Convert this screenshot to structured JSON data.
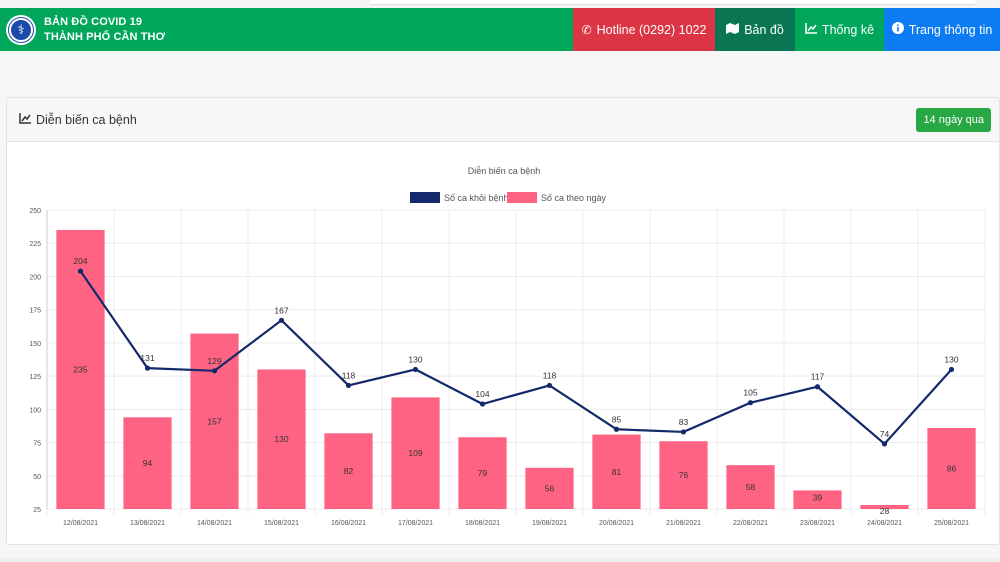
{
  "navbar": {
    "brand_line1": "BẢN ĐỒ COVID 19",
    "brand_line2": "THÀNH PHỐ CẦN THƠ",
    "logo_icon": "medical-caduceus-icon",
    "items": [
      {
        "label": "Hotline (0292) 1022",
        "icon": "phone-icon",
        "color": "#dc3545"
      },
      {
        "label": "Bản đồ",
        "icon": "map-icon",
        "color": "#097553"
      },
      {
        "label": "Thống kê",
        "icon": "line-chart-icon",
        "color": "#00a65a"
      },
      {
        "label": "Trang thông tin",
        "icon": "info-circle-icon",
        "color": "#0d7cf2"
      }
    ]
  },
  "card": {
    "title": "Diễn biến ca bệnh",
    "title_icon": "line-chart-icon",
    "range_button": "14 ngày qua"
  },
  "chart_data": {
    "type": "bar",
    "title": "Diễn biến ca bệnh",
    "xlabel": "",
    "ylabel": "",
    "ylim": [
      25,
      250
    ],
    "yticks": [
      25,
      50,
      75,
      100,
      125,
      150,
      175,
      200,
      225,
      250
    ],
    "grid": true,
    "legend": "top-center",
    "categories": [
      "12/08/2021",
      "13/08/2021",
      "14/08/2021",
      "15/08/2021",
      "16/08/2021",
      "17/08/2021",
      "18/08/2021",
      "19/08/2021",
      "20/08/2021",
      "21/08/2021",
      "22/08/2021",
      "23/08/2021",
      "24/08/2021",
      "25/08/2021"
    ],
    "series": [
      {
        "name": "Số ca khỏi bệnh",
        "type": "line",
        "color": "#14296b",
        "values": [
          204,
          131,
          129,
          167,
          118,
          130,
          104,
          118,
          85,
          83,
          105,
          117,
          74,
          130
        ]
      },
      {
        "name": "Số ca theo ngày",
        "type": "bar",
        "color": "#ff6384",
        "values": [
          235,
          94,
          157,
          130,
          82,
          109,
          79,
          56,
          81,
          76,
          58,
          39,
          28,
          86
        ]
      }
    ]
  }
}
